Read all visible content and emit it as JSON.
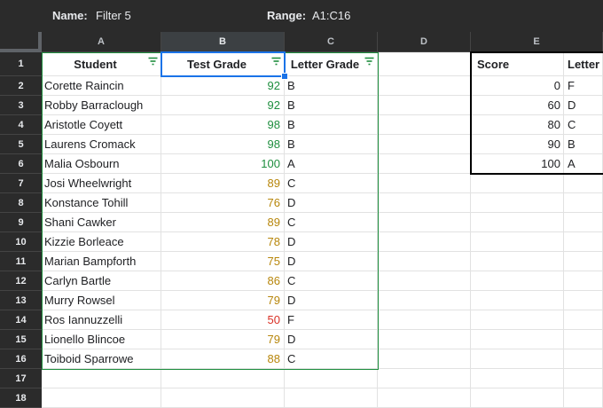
{
  "filter_bar": {
    "name_label": "Name:",
    "name_value": "Filter 5",
    "range_label": "Range:",
    "range_value": "A1:C16"
  },
  "columns": [
    "A",
    "B",
    "C",
    "D",
    "E"
  ],
  "rows": [
    "1",
    "2",
    "3",
    "4",
    "5",
    "6",
    "7",
    "8",
    "9",
    "10",
    "11",
    "12",
    "13",
    "14",
    "15",
    "16",
    "17",
    "18"
  ],
  "headers": {
    "student": "Student",
    "test_grade": "Test Grade",
    "letter_grade": "Letter Grade"
  },
  "students": [
    {
      "name": "Corette Raincin",
      "grade": "92",
      "letter": "B"
    },
    {
      "name": "Robby Barraclough",
      "grade": "92",
      "letter": "B"
    },
    {
      "name": "Aristotle Coyett",
      "grade": "98",
      "letter": "B"
    },
    {
      "name": "Laurens Cromack",
      "grade": "98",
      "letter": "B"
    },
    {
      "name": "Malia Osbourn",
      "grade": "100",
      "letter": "A"
    },
    {
      "name": "Josi Wheelwright",
      "grade": "89",
      "letter": "C"
    },
    {
      "name": "Konstance Tohill",
      "grade": "76",
      "letter": "D"
    },
    {
      "name": "Shani Cawker",
      "grade": "89",
      "letter": "C"
    },
    {
      "name": "Kizzie Borleace",
      "grade": "78",
      "letter": "D"
    },
    {
      "name": "Marian Bampforth",
      "grade": "75",
      "letter": "D"
    },
    {
      "name": "Carlyn Bartle",
      "grade": "86",
      "letter": "C"
    },
    {
      "name": "Murry Rowsel",
      "grade": "79",
      "letter": "D"
    },
    {
      "name": "Ros Iannuzzelli",
      "grade": "50",
      "letter": "F"
    },
    {
      "name": "Lionello Blincoe",
      "grade": "79",
      "letter": "D"
    },
    {
      "name": "Toiboid Sparrowe",
      "grade": "88",
      "letter": "C"
    }
  ],
  "lookup": {
    "score_header": "Score",
    "letter_header": "Letter",
    "rows": [
      {
        "score": "0",
        "letter": "F"
      },
      {
        "score": "60",
        "letter": "D"
      },
      {
        "score": "80",
        "letter": "C"
      },
      {
        "score": "90",
        "letter": "B"
      },
      {
        "score": "100",
        "letter": "A"
      }
    ]
  },
  "colors": {
    "grade_high": "#1e8e3e",
    "grade_mid": "#b7860b",
    "grade_low": "#d93025",
    "filter_range": "#1e8e3e",
    "active_cell": "#1a73e8"
  },
  "icons": {
    "filter": "filter-icon"
  }
}
